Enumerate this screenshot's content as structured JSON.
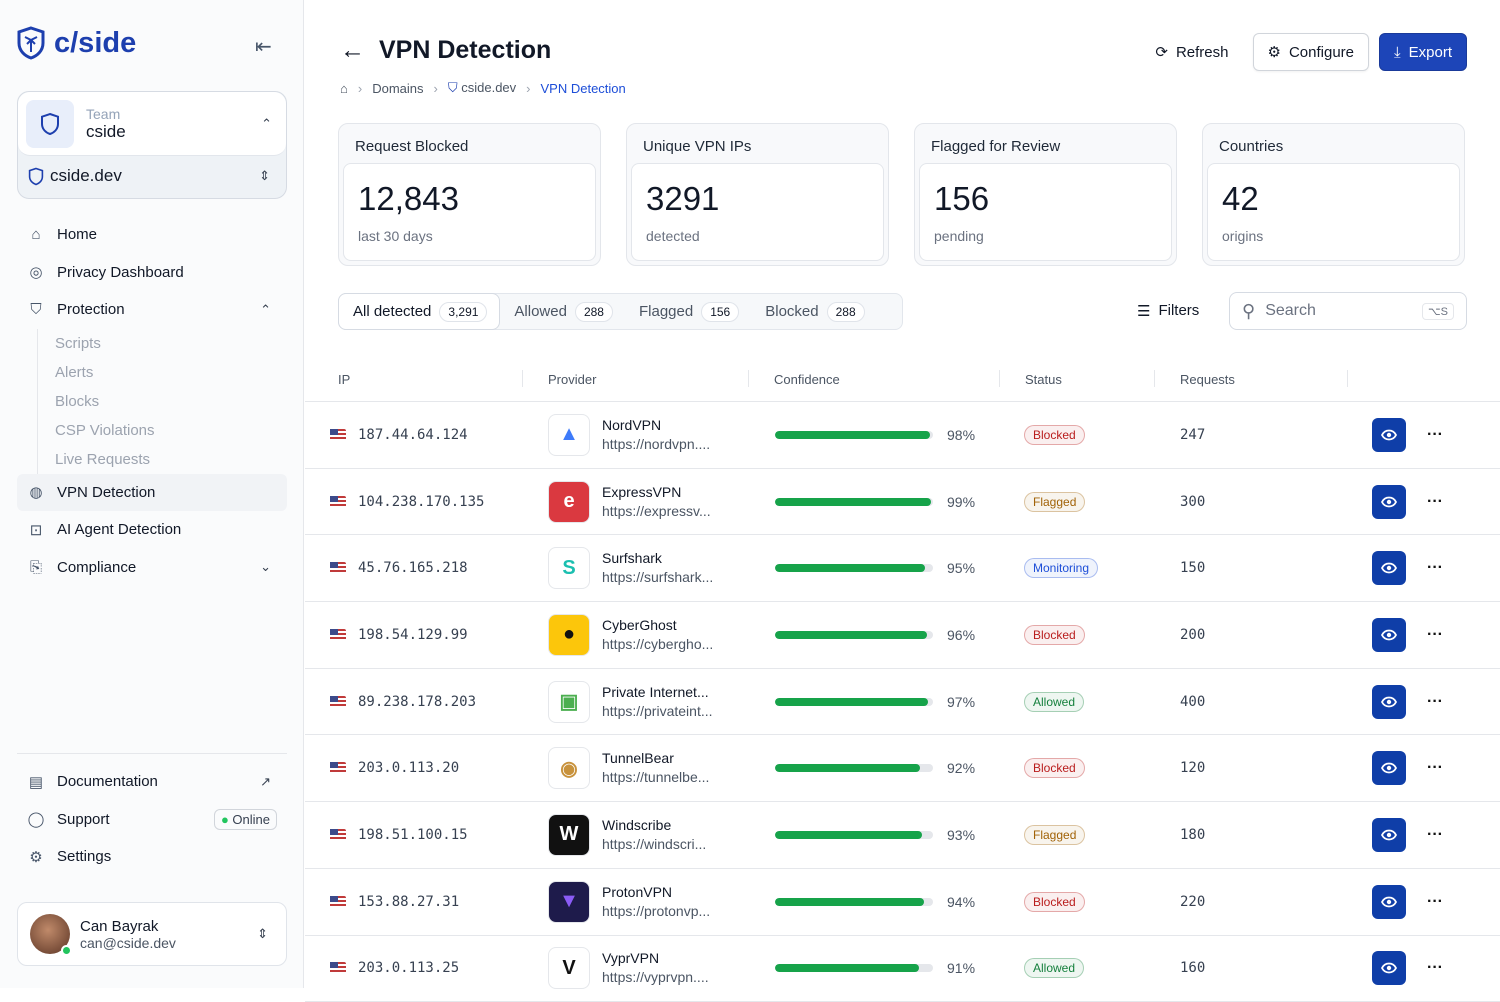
{
  "brand": "c/side",
  "team": {
    "label": "Team",
    "name": "cside"
  },
  "domain": "cside.dev",
  "nav": {
    "home": "Home",
    "privacy": "Privacy Dashboard",
    "protection": "Protection",
    "sub": [
      "Scripts",
      "Alerts",
      "Blocks",
      "CSP Violations",
      "Live Requests"
    ],
    "vpn": "VPN Detection",
    "ai": "AI Agent Detection",
    "compliance": "Compliance"
  },
  "bottom": {
    "docs": "Documentation",
    "support": "Support",
    "online": "Online",
    "settings": "Settings"
  },
  "user": {
    "name": "Can Bayrak",
    "email": "can@cside.dev"
  },
  "header": {
    "title": "VPN Detection",
    "refresh": "Refresh",
    "configure": "Configure",
    "export": "Export"
  },
  "breadcrumb": [
    "Domains",
    "cside.dev",
    "VPN Detection"
  ],
  "cards": [
    {
      "label": "Request Blocked",
      "value": "12,843",
      "sub": "last 30 days"
    },
    {
      "label": "Unique VPN IPs",
      "value": "3291",
      "sub": "detected"
    },
    {
      "label": "Flagged for Review",
      "value": "156",
      "sub": "pending"
    },
    {
      "label": "Countries",
      "value": "42",
      "sub": "origins"
    }
  ],
  "tabs": [
    {
      "label": "All detected",
      "count": "3,291"
    },
    {
      "label": "Allowed",
      "count": "288"
    },
    {
      "label": "Flagged",
      "count": "156"
    },
    {
      "label": "Blocked",
      "count": "288"
    }
  ],
  "filters": "Filters",
  "search": {
    "placeholder": "Search",
    "shortcut": "⌥S"
  },
  "columns": [
    "IP",
    "Provider",
    "Confidence",
    "Status",
    "Requests"
  ],
  "status_colors": {
    "Blocked": "#b91c1c",
    "Flagged": "#a16207",
    "Monitoring": "#1d4ed8",
    "Allowed": "#15803d"
  },
  "rows": [
    {
      "ip": "187.44.64.124",
      "provider": "NordVPN",
      "url": "https://nordvpn....",
      "confidence": 98,
      "status": "Blocked",
      "requests": "247",
      "logo_bg": "#fff",
      "logo_fg": "#3e7bfa",
      "glyph": "▲"
    },
    {
      "ip": "104.238.170.135",
      "provider": "ExpressVPN",
      "url": "https://expressv...",
      "confidence": 99,
      "status": "Flagged",
      "requests": "300",
      "logo_bg": "#da3940",
      "logo_fg": "#fff",
      "glyph": "e"
    },
    {
      "ip": "45.76.165.218",
      "provider": "Surfshark",
      "url": "https://surfshark...",
      "confidence": 95,
      "status": "Monitoring",
      "requests": "150",
      "logo_bg": "#fff",
      "logo_fg": "#1bbfb0",
      "glyph": "S"
    },
    {
      "ip": "198.54.129.99",
      "provider": "CyberGhost",
      "url": "https://cybergho...",
      "confidence": 96,
      "status": "Blocked",
      "requests": "200",
      "logo_bg": "#fcc60b",
      "logo_fg": "#111",
      "glyph": "●"
    },
    {
      "ip": "89.238.178.203",
      "provider": "Private Internet...",
      "url": "https://privateint...",
      "confidence": 97,
      "status": "Allowed",
      "requests": "400",
      "logo_bg": "#fff",
      "logo_fg": "#4caf50",
      "glyph": "▣"
    },
    {
      "ip": "203.0.113.20",
      "provider": "TunnelBear",
      "url": "https://tunnelbe...",
      "confidence": 92,
      "status": "Blocked",
      "requests": "120",
      "logo_bg": "#fff",
      "logo_fg": "#c8923c",
      "glyph": "◉"
    },
    {
      "ip": "198.51.100.15",
      "provider": "Windscribe",
      "url": "https://windscri...",
      "confidence": 93,
      "status": "Flagged",
      "requests": "180",
      "logo_bg": "#111",
      "logo_fg": "#fff",
      "glyph": "W"
    },
    {
      "ip": "153.88.27.31",
      "provider": "ProtonVPN",
      "url": "https://protonvp...",
      "confidence": 94,
      "status": "Blocked",
      "requests": "220",
      "logo_bg": "#1e1b4b",
      "logo_fg": "#8b5cf6",
      "glyph": "▼"
    },
    {
      "ip": "203.0.113.25",
      "provider": "VyprVPN",
      "url": "https://vyprvpn....",
      "confidence": 91,
      "status": "Allowed",
      "requests": "160",
      "logo_bg": "#fff",
      "logo_fg": "#111",
      "glyph": "V"
    }
  ]
}
